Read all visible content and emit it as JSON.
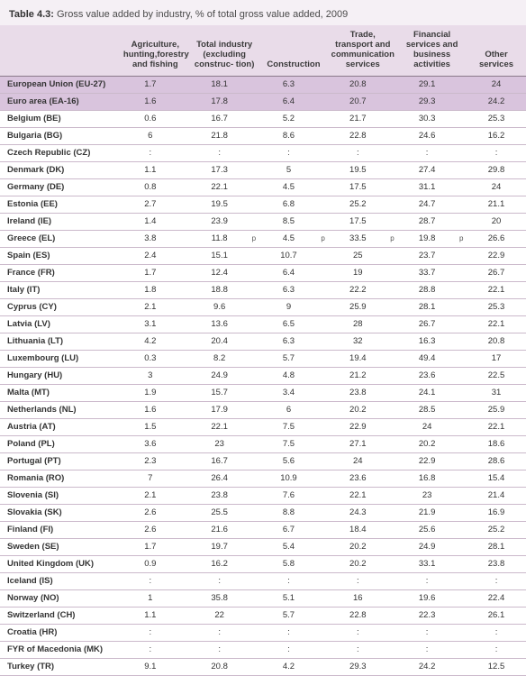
{
  "title_prefix": "Table 4.3:",
  "title_rest": " Gross value added by industry,  % of total gross value added, 2009",
  "columns": [
    {
      "key": "agri",
      "label": "Agriculture, hunting,forestry and fishing"
    },
    {
      "key": "ind",
      "label": "Total industry (excluding construc- tion)"
    },
    {
      "key": "con",
      "label": "Construction"
    },
    {
      "key": "trade",
      "label": "Trade, transport and communication services"
    },
    {
      "key": "fin",
      "label": "Financial services and business activities"
    },
    {
      "key": "other",
      "label": "Other services"
    }
  ],
  "rows": [
    {
      "hl": true,
      "label": "European Union (EU-27)",
      "vals": [
        "1.7",
        "18.1",
        "6.3",
        "20.8",
        "29.1",
        "24"
      ]
    },
    {
      "hl": true,
      "label": "Euro area (EA-16)",
      "vals": [
        "1.6",
        "17.8",
        "6.4",
        "20.7",
        "29.3",
        "24.2"
      ]
    },
    {
      "label": "Belgium (BE)",
      "vals": [
        "0.6",
        "16.7",
        "5.2",
        "21.7",
        "30.3",
        "25.3"
      ]
    },
    {
      "label": "Bulgaria (BG)",
      "vals": [
        "6",
        "21.8",
        "8.6",
        "22.8",
        "24.6",
        "16.2"
      ]
    },
    {
      "label": "Czech Republic (CZ)",
      "vals": [
        ":",
        ":",
        ":",
        ":",
        ":",
        ":"
      ]
    },
    {
      "label": "Denmark (DK)",
      "vals": [
        "1.1",
        "17.3",
        "5",
        "19.5",
        "27.4",
        "29.8"
      ]
    },
    {
      "label": "Germany (DE)",
      "vals": [
        "0.8",
        "22.1",
        "4.5",
        "17.5",
        "31.1",
        "24"
      ]
    },
    {
      "label": "Estonia (EE)",
      "vals": [
        "2.7",
        "19.5",
        "6.8",
        "25.2",
        "24.7",
        "21.1"
      ]
    },
    {
      "label": "Ireland (IE)",
      "vals": [
        "1.4",
        "23.9",
        "8.5",
        "17.5",
        "28.7",
        "20"
      ]
    },
    {
      "label": "Greece (EL)",
      "vals": [
        "3.8",
        "11.8",
        "4.5",
        "33.5",
        "19.8",
        "26.6"
      ],
      "flags": [
        "",
        "p",
        "p",
        "p",
        "p",
        ""
      ]
    },
    {
      "label": "Spain (ES)",
      "vals": [
        "2.4",
        "15.1",
        "10.7",
        "25",
        "23.7",
        "22.9"
      ]
    },
    {
      "label": "France (FR)",
      "vals": [
        "1.7",
        "12.4",
        "6.4",
        "19",
        "33.7",
        "26.7"
      ]
    },
    {
      "label": "Italy (IT)",
      "vals": [
        "1.8",
        "18.8",
        "6.3",
        "22.2",
        "28.8",
        "22.1"
      ]
    },
    {
      "label": "Cyprus (CY)",
      "vals": [
        "2.1",
        "9.6",
        "9",
        "25.9",
        "28.1",
        "25.3"
      ]
    },
    {
      "label": "Latvia (LV)",
      "vals": [
        "3.1",
        "13.6",
        "6.5",
        "28",
        "26.7",
        "22.1"
      ]
    },
    {
      "label": "Lithuania (LT)",
      "vals": [
        "4.2",
        "20.4",
        "6.3",
        "32",
        "16.3",
        "20.8"
      ]
    },
    {
      "label": "Luxembourg (LU)",
      "vals": [
        "0.3",
        "8.2",
        "5.7",
        "19.4",
        "49.4",
        "17"
      ]
    },
    {
      "label": "Hungary (HU)",
      "vals": [
        "3",
        "24.9",
        "4.8",
        "21.2",
        "23.6",
        "22.5"
      ]
    },
    {
      "label": "Malta (MT)",
      "vals": [
        "1.9",
        "15.7",
        "3.4",
        "23.8",
        "24.1",
        "31"
      ]
    },
    {
      "label": "Netherlands (NL)",
      "vals": [
        "1.6",
        "17.9",
        "6",
        "20.2",
        "28.5",
        "25.9"
      ]
    },
    {
      "label": "Austria (AT)",
      "vals": [
        "1.5",
        "22.1",
        "7.5",
        "22.9",
        "24",
        "22.1"
      ]
    },
    {
      "label": "Poland (PL)",
      "vals": [
        "3.6",
        "23",
        "7.5",
        "27.1",
        "20.2",
        "18.6"
      ]
    },
    {
      "label": "Portugal (PT)",
      "vals": [
        "2.3",
        "16.7",
        "5.6",
        "24",
        "22.9",
        "28.6"
      ]
    },
    {
      "label": "Romania (RO)",
      "vals": [
        "7",
        "26.4",
        "10.9",
        "23.6",
        "16.8",
        "15.4"
      ]
    },
    {
      "label": "Slovenia (SI)",
      "vals": [
        "2.1",
        "23.8",
        "7.6",
        "22.1",
        "23",
        "21.4"
      ]
    },
    {
      "label": "Slovakia (SK)",
      "vals": [
        "2.6",
        "25.5",
        "8.8",
        "24.3",
        "21.9",
        "16.9"
      ]
    },
    {
      "label": "Finland (FI)",
      "vals": [
        "2.6",
        "21.6",
        "6.7",
        "18.4",
        "25.6",
        "25.2"
      ]
    },
    {
      "label": "Sweden (SE)",
      "vals": [
        "1.7",
        "19.7",
        "5.4",
        "20.2",
        "24.9",
        "28.1"
      ]
    },
    {
      "label": "United Kingdom (UK)",
      "vals": [
        "0.9",
        "16.2",
        "5.8",
        "20.2",
        "33.1",
        "23.8"
      ]
    },
    {
      "label": "Iceland (IS)",
      "vals": [
        ":",
        ":",
        ":",
        ":",
        ":",
        ":"
      ]
    },
    {
      "label": "Norway (NO)",
      "vals": [
        "1",
        "35.8",
        "5.1",
        "16",
        "19.6",
        "22.4"
      ]
    },
    {
      "label": "Switzerland (CH)",
      "vals": [
        "1.1",
        "22",
        "5.7",
        "22.8",
        "22.3",
        "26.1"
      ]
    },
    {
      "label": "Croatia (HR)",
      "vals": [
        ":",
        ":",
        ":",
        ":",
        ":",
        ":"
      ]
    },
    {
      "label": "FYR of Macedonia (MK)",
      "vals": [
        ":",
        ":",
        ":",
        ":",
        ":",
        ":"
      ]
    },
    {
      "label": "Turkey (TR)",
      "vals": [
        "9.1",
        "20.8",
        "4.2",
        "29.3",
        "24.2",
        "12.5"
      ]
    }
  ]
}
